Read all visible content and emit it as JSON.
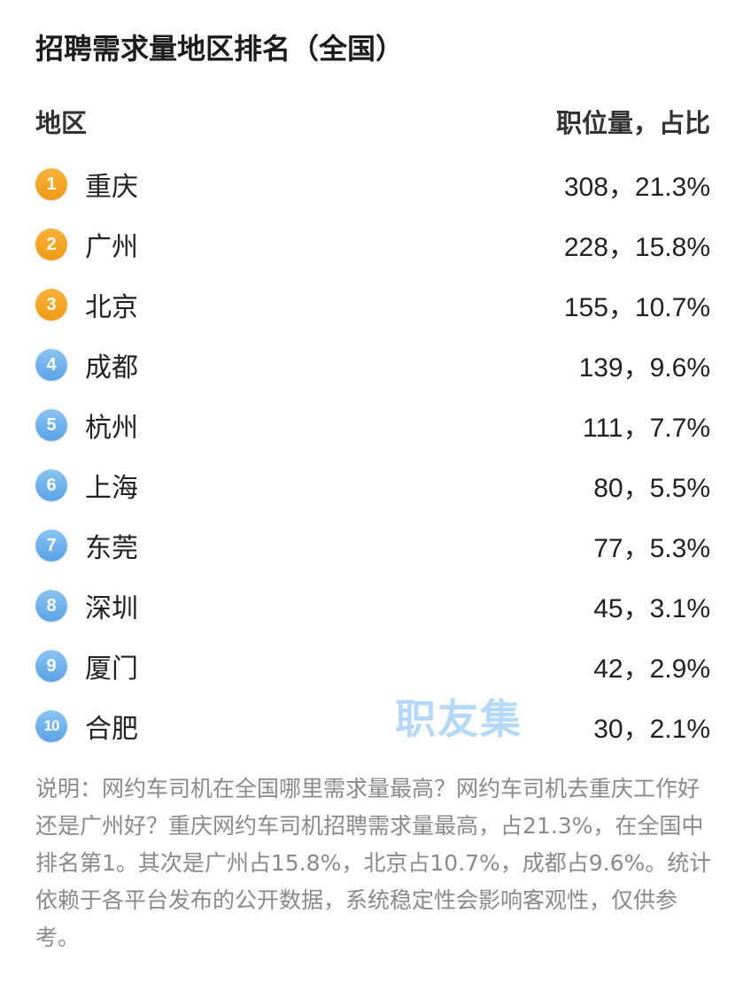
{
  "title": "招聘需求量地区排名（全国）",
  "header": {
    "left": "地区",
    "right": "职位量，占比"
  },
  "rows": [
    {
      "rank": "1",
      "city": "重庆",
      "value": "308，21.3%"
    },
    {
      "rank": "2",
      "city": "广州",
      "value": "228，15.8%"
    },
    {
      "rank": "3",
      "city": "北京",
      "value": "155，10.7%"
    },
    {
      "rank": "4",
      "city": "成都",
      "value": "139，9.6%"
    },
    {
      "rank": "5",
      "city": "杭州",
      "value": "111，7.7%"
    },
    {
      "rank": "6",
      "city": "上海",
      "value": "80，5.5%"
    },
    {
      "rank": "7",
      "city": "东莞",
      "value": "77，5.3%"
    },
    {
      "rank": "8",
      "city": "深圳",
      "value": "45，3.1%"
    },
    {
      "rank": "9",
      "city": "厦门",
      "value": "42，2.9%"
    },
    {
      "rank": "10",
      "city": "合肥",
      "value": "30，2.1%"
    }
  ],
  "watermark": "职友集",
  "note": "说明：网约车司机在全国哪里需求量最高？网约车司机去重庆工作好还是广州好？重庆网约车司机招聘需求量最高，占21.3%，在全国中排名第1。其次是广州占15.8%，北京占10.7%，成都占9.6%。统计依赖于各平台发布的公开数据，系统稳定性会影响客观性，仅供参考。",
  "colors": {
    "top_badge": "#ef9a14",
    "rest_badge": "#5aa3e6",
    "watermark": "#a9d3f5",
    "note_text": "#8a8a8a"
  }
}
